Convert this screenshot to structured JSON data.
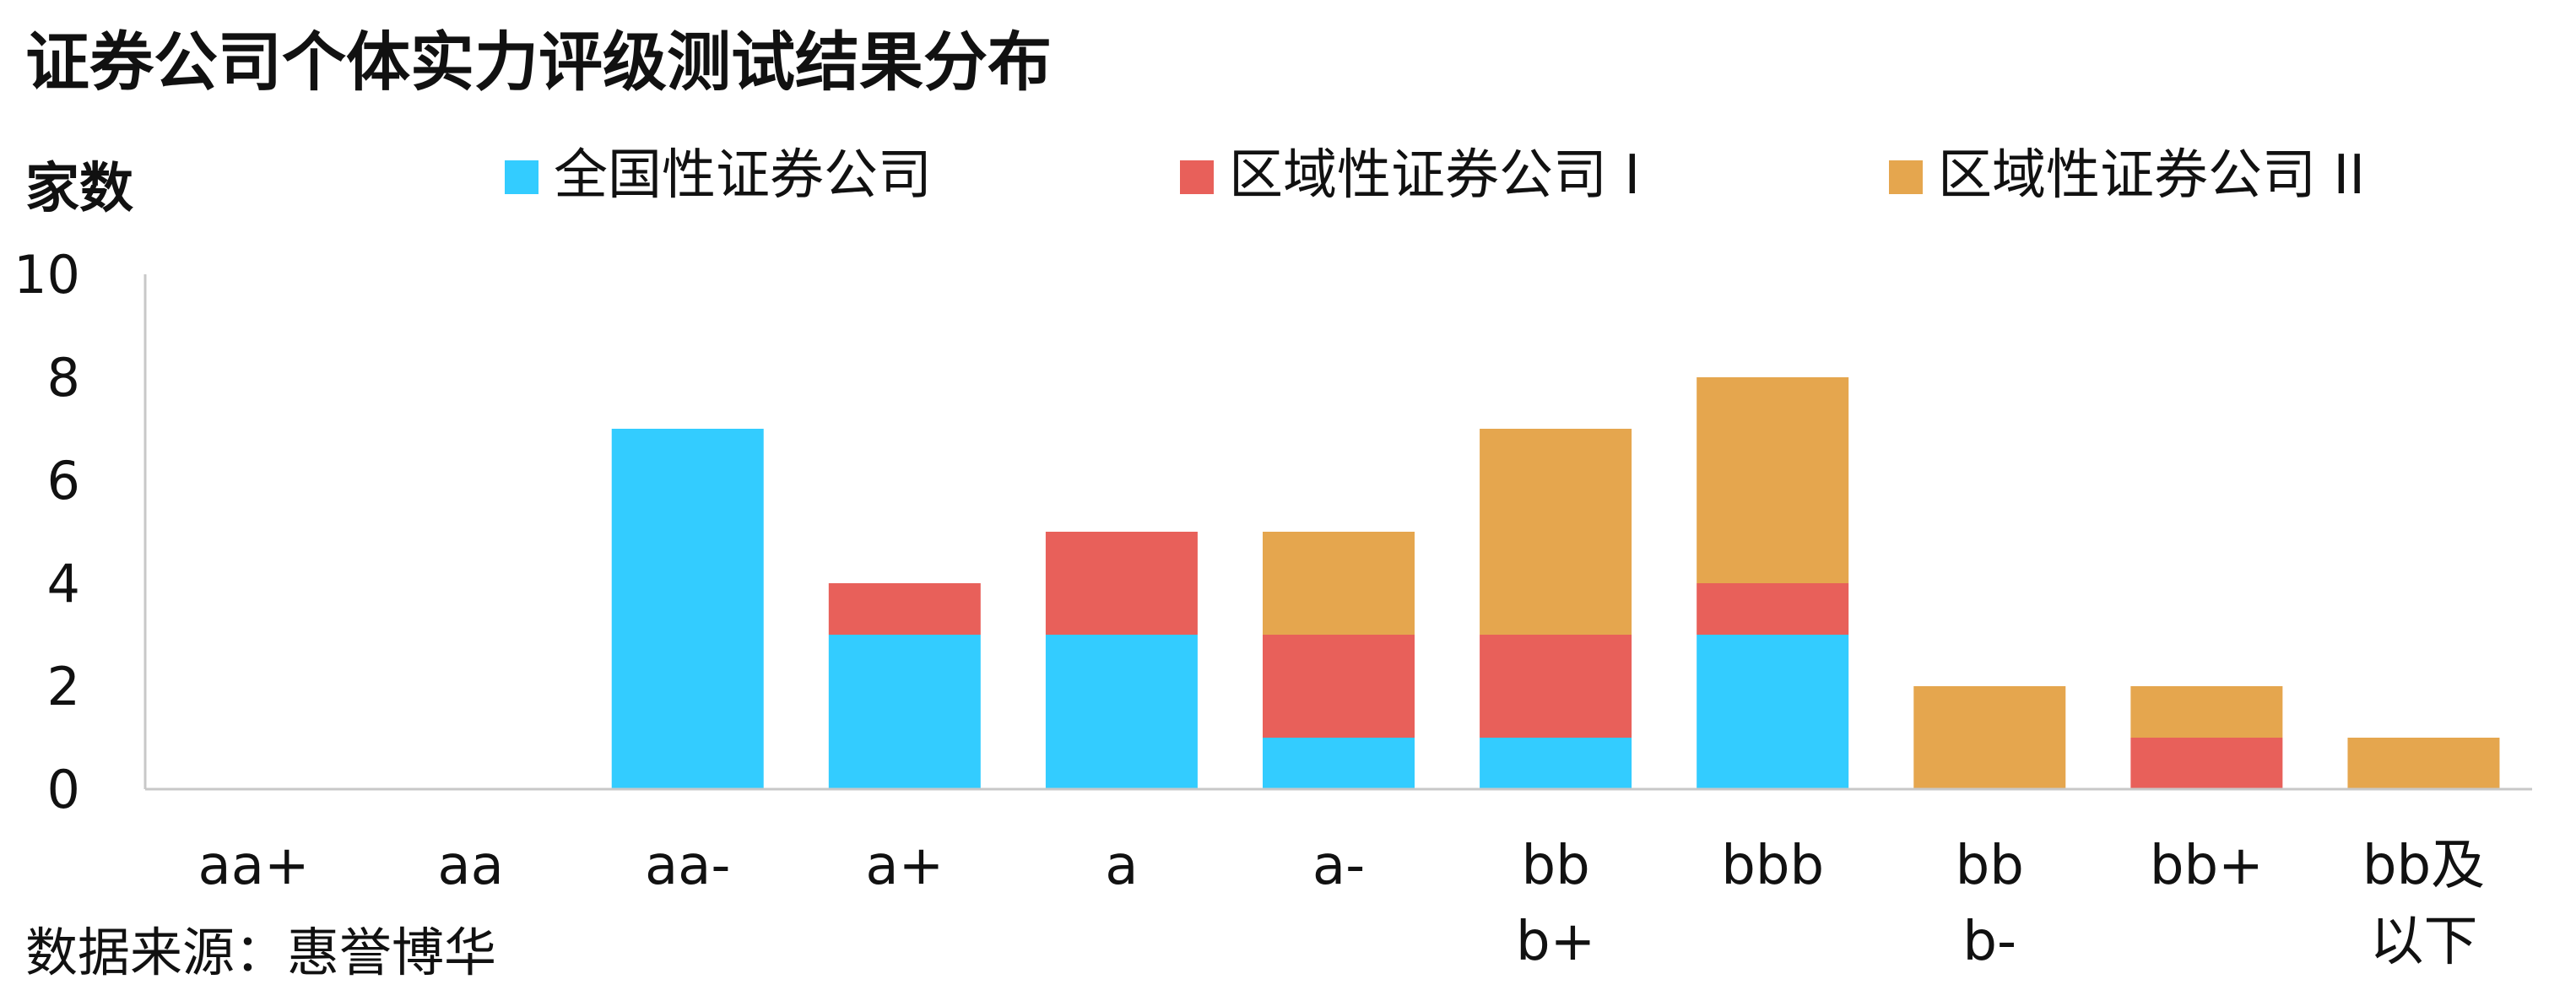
{
  "chart_data": {
    "type": "bar",
    "stacked": true,
    "title": "证券公司个体实力评级测试结果分布",
    "ylabel": "家数",
    "source": "数据来源：惠誉博华",
    "categories": [
      "aa+",
      "aa",
      "aa-",
      "a+",
      "a",
      "a-",
      "bbb+",
      "bbb",
      "bbb-",
      "bb+",
      "bb及以下"
    ],
    "ylim": [
      0,
      10
    ],
    "yticks": [
      0,
      2,
      4,
      6,
      8,
      10
    ],
    "grid": false,
    "legend_position": "top",
    "series": [
      {
        "name": "全国性证券公司",
        "color": "#33CCFF",
        "values": [
          0,
          0,
          7,
          3,
          3,
          1,
          1,
          3,
          0,
          0,
          0
        ]
      },
      {
        "name": "区域性证券公司 I",
        "color": "#E8605A",
        "values": [
          0,
          0,
          0,
          1,
          2,
          2,
          2,
          1,
          0,
          1,
          0
        ]
      },
      {
        "name": "区域性证券公司 II",
        "color": "#E5A64E",
        "values": [
          0,
          0,
          0,
          0,
          0,
          2,
          4,
          4,
          2,
          1,
          1
        ]
      }
    ]
  }
}
